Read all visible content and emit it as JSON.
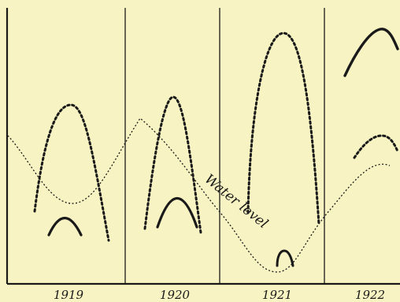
{
  "chart_data": {
    "type": "line",
    "title": "",
    "xlabel": "",
    "ylabel": "",
    "grid": false,
    "categories": [
      "1919",
      "1920",
      "1921",
      "1922"
    ],
    "annotation": "Water level",
    "colors": {
      "ink": "#1a1a1a",
      "paper": "#f8f3c2"
    }
  }
}
